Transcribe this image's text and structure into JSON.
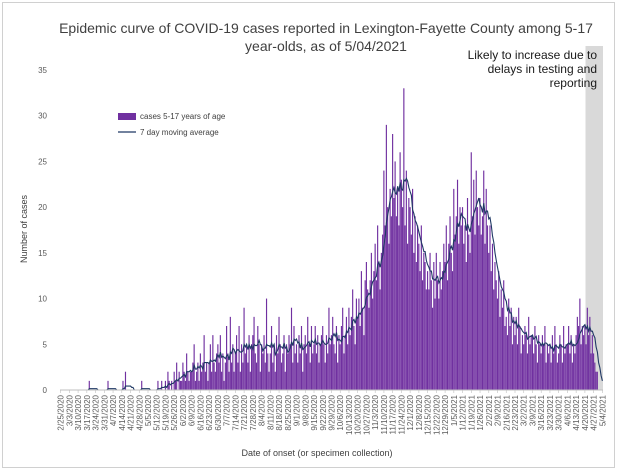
{
  "chart_data": {
    "type": "bar",
    "title_line1": "Epidemic curve of COVID-19 cases reported in Lexington-Fayette County among 5-17",
    "title_line2": "year-olds, as of 5/04/2021",
    "xlabel": "Date of onset (or specimen collection)",
    "ylabel": "Number of cases",
    "ylim": [
      0,
      35
    ],
    "yticks": [
      0,
      5,
      10,
      15,
      20,
      25,
      30,
      35
    ],
    "start_date": "2020-02-25",
    "end_date": "2021-05-04",
    "xtick_labels": [
      "2/25/2020",
      "3/3/2020",
      "3/10/2020",
      "3/17/2020",
      "3/24/2020",
      "3/31/2020",
      "4/7/2020",
      "4/14/2020",
      "4/21/2020",
      "4/28/2020",
      "5/5/2020",
      "5/12/2020",
      "5/19/2020",
      "5/26/2020",
      "6/2/2020",
      "6/9/2020",
      "6/16/2020",
      "6/23/2020",
      "6/30/2020",
      "7/7/2020",
      "7/14/2020",
      "7/21/2020",
      "7/28/2020",
      "8/4/2020",
      "8/11/2020",
      "8/18/2020",
      "8/25/2020",
      "9/1/2020",
      "9/8/2020",
      "9/15/2020",
      "9/22/2020",
      "9/29/2020",
      "10/6/2020",
      "10/13/2020",
      "10/20/2020",
      "10/27/2020",
      "11/3/2020",
      "11/10/2020",
      "11/17/2020",
      "11/24/2020",
      "12/1/2020",
      "12/8/2020",
      "12/15/2020",
      "12/22/2020",
      "12/29/2020",
      "1/5/2021",
      "1/12/2021",
      "1/19/2021",
      "1/26/2021",
      "2/2/2021",
      "2/9/2021",
      "2/16/2021",
      "2/23/2021",
      "3/2/2021",
      "3/9/2021",
      "3/16/2021",
      "3/23/2021",
      "3/30/2021",
      "4/6/2021",
      "4/13/2021",
      "4/20/2021",
      "4/27/2021",
      "5/4/2021"
    ],
    "weekly_bars": [
      [
        0,
        0,
        0,
        0,
        0,
        0,
        0
      ],
      [
        0,
        0,
        0,
        0,
        0,
        0,
        0
      ],
      [
        0,
        0,
        0,
        0,
        0,
        0,
        0
      ],
      [
        0,
        0,
        1,
        0,
        0,
        0,
        0
      ],
      [
        0,
        0,
        0,
        0,
        0,
        0,
        0
      ],
      [
        0,
        0,
        0,
        1,
        0,
        0,
        0
      ],
      [
        0,
        0,
        0,
        0,
        0,
        0,
        0
      ],
      [
        0,
        1,
        0,
        2,
        0,
        0,
        0
      ],
      [
        0,
        0,
        0,
        0,
        0,
        0,
        0
      ],
      [
        0,
        0,
        1,
        0,
        0,
        0,
        0
      ],
      [
        0,
        0,
        0,
        0,
        0,
        0,
        0
      ],
      [
        0,
        1,
        0,
        0,
        1,
        0,
        0
      ],
      [
        1,
        0,
        2,
        1,
        0,
        1,
        0
      ],
      [
        2,
        1,
        3,
        0,
        2,
        1,
        1
      ],
      [
        3,
        2,
        1,
        4,
        2,
        1,
        2
      ],
      [
        2,
        3,
        5,
        1,
        2,
        3,
        1
      ],
      [
        4,
        2,
        3,
        6,
        2,
        3,
        1
      ],
      [
        3,
        5,
        2,
        6,
        3,
        2,
        4
      ],
      [
        5,
        3,
        6,
        2,
        4,
        1,
        3
      ],
      [
        7,
        4,
        2,
        8,
        3,
        5,
        2
      ],
      [
        4,
        6,
        3,
        7,
        2,
        5,
        3
      ],
      [
        9,
        4,
        5,
        3,
        6,
        2,
        5
      ],
      [
        6,
        8,
        4,
        3,
        7,
        5,
        2
      ],
      [
        5,
        4,
        6,
        3,
        10,
        4,
        2
      ],
      [
        4,
        7,
        3,
        5,
        2,
        6,
        4
      ],
      [
        8,
        5,
        3,
        4,
        6,
        2,
        5
      ],
      [
        4,
        6,
        5,
        9,
        3,
        7,
        4
      ],
      [
        5,
        3,
        6,
        4,
        7,
        2,
        5
      ],
      [
        6,
        4,
        8,
        5,
        3,
        7,
        4
      ],
      [
        5,
        7,
        4,
        6,
        3,
        5,
        6
      ],
      [
        7,
        5,
        3,
        6,
        4,
        9,
        5
      ],
      [
        6,
        8,
        5,
        4,
        7,
        3,
        6
      ],
      [
        5,
        7,
        9,
        4,
        6,
        8,
        5
      ],
      [
        9,
        6,
        8,
        11,
        7,
        5,
        10
      ],
      [
        8,
        10,
        7,
        13,
        9,
        6,
        12
      ],
      [
        14,
        11,
        9,
        12,
        15,
        10,
        13
      ],
      [
        16,
        12,
        18,
        14,
        11,
        15,
        17
      ],
      [
        24,
        18,
        29,
        20,
        16,
        22,
        19
      ],
      [
        28,
        21,
        25,
        19,
        22,
        18,
        26
      ],
      [
        23,
        20,
        33,
        18,
        24,
        16,
        21
      ],
      [
        20,
        17,
        22,
        15,
        19,
        14,
        18
      ],
      [
        16,
        13,
        18,
        12,
        15,
        14,
        11
      ],
      [
        13,
        11,
        15,
        12,
        9,
        14,
        10
      ],
      [
        15,
        12,
        10,
        14,
        11,
        13,
        16
      ],
      [
        14,
        18,
        12,
        16,
        19,
        15,
        13
      ],
      [
        22,
        17,
        19,
        23,
        16,
        20,
        18
      ],
      [
        20,
        16,
        18,
        14,
        21,
        17,
        15
      ],
      [
        26,
        19,
        23,
        17,
        24,
        20,
        18
      ],
      [
        21,
        17,
        19,
        24,
        16,
        22,
        18
      ],
      [
        15,
        18,
        13,
        16,
        11,
        14,
        12
      ],
      [
        10,
        13,
        8,
        11,
        9,
        12,
        7
      ],
      [
        8,
        6,
        10,
        7,
        9,
        5,
        8
      ],
      [
        6,
        8,
        5,
        9,
        7,
        4,
        6
      ],
      [
        5,
        7,
        6,
        4,
        8,
        5,
        6
      ],
      [
        6,
        4,
        7,
        5,
        3,
        6,
        5
      ],
      [
        4,
        6,
        5,
        7,
        3,
        5,
        4
      ],
      [
        5,
        3,
        6,
        4,
        7,
        5,
        3
      ],
      [
        4,
        6,
        5,
        3,
        7,
        4,
        5
      ],
      [
        5,
        7,
        4,
        6,
        3,
        5,
        4
      ],
      [
        6,
        8,
        7,
        10,
        5,
        7,
        6
      ],
      [
        7,
        5,
        9,
        6,
        8,
        4,
        6
      ],
      [
        4,
        3,
        2,
        2,
        0,
        0,
        0
      ]
    ],
    "series": [
      {
        "name": "cases 5-17 years of age",
        "color": "#7030A0"
      },
      {
        "name": "7 day moving average",
        "color": "#1F3864"
      }
    ],
    "shaded_region": {
      "start_date": "2021-04-21",
      "end_date": "2021-05-04",
      "color": "#d9d9d9"
    },
    "annotation_lines": [
      "Likely to increase due to",
      "delays in testing and",
      "reporting"
    ],
    "grid": false,
    "legend_position": "top-left"
  }
}
